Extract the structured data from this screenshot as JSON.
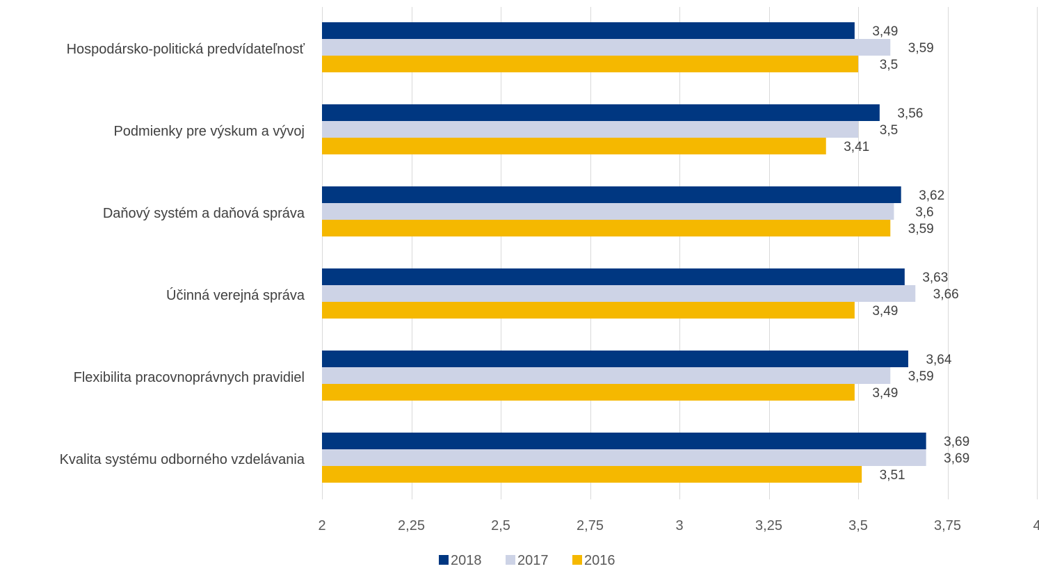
{
  "chart_data": {
    "type": "bar",
    "orientation": "horizontal",
    "title": "",
    "xlabel": "",
    "ylabel": "",
    "categories": [
      "Hospodársko-politická predvídateľnosť",
      "Podmienky pre výskum a vývoj",
      "Daňový systém a daňová správa",
      "Účinná verejná správa",
      "Flexibilita pracovnoprávnych pravidiel",
      "Kvalita systému odborného vzdelávania"
    ],
    "series": [
      {
        "name": "2018",
        "color": "#003781",
        "values": [
          3.49,
          3.56,
          3.62,
          3.63,
          3.64,
          3.69
        ],
        "labels": [
          "3,49",
          "3,56",
          "3,62",
          "3,63",
          "3,64",
          "3,69"
        ]
      },
      {
        "name": "2017",
        "color": "#cdd3e6",
        "values": [
          3.59,
          3.5,
          3.6,
          3.66,
          3.59,
          3.69
        ],
        "labels": [
          "3,59",
          "3,5",
          "3,6",
          "3,66",
          "3,59",
          "3,69"
        ]
      },
      {
        "name": "2016",
        "color": "#f5b800",
        "values": [
          3.5,
          3.41,
          3.59,
          3.49,
          3.49,
          3.51
        ],
        "labels": [
          "3,5",
          "3,41",
          "3,59",
          "3,49",
          "3,49",
          "3,51"
        ]
      }
    ],
    "xlim": [
      2,
      4
    ],
    "x_ticks": [
      2,
      2.25,
      2.5,
      2.75,
      3,
      3.25,
      3.5,
      3.75,
      4
    ],
    "x_tick_labels": [
      "2",
      "2,25",
      "2,5",
      "2,75",
      "3",
      "3,25",
      "3,5",
      "3,75",
      "4"
    ],
    "grid": true,
    "legend_position": "bottom"
  }
}
